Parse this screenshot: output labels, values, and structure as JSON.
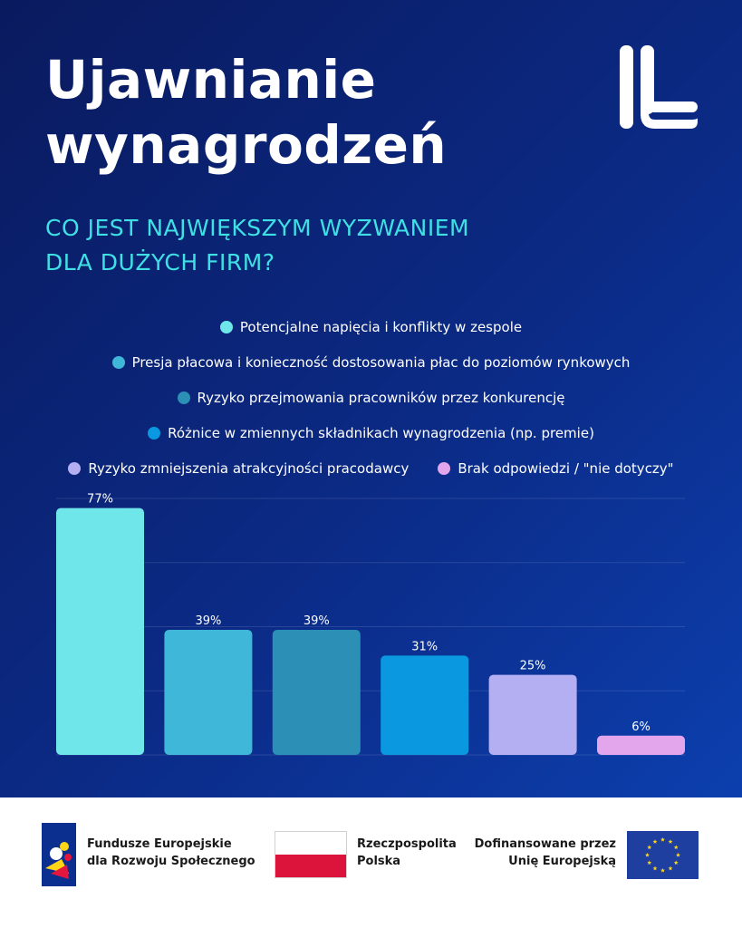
{
  "header": {
    "title_line1": "Ujawnianie",
    "title_line2": "wynagrodzeń",
    "subtitle_line1": "CO JEST NAJWIĘKSZYM WYZWANIEM",
    "subtitle_line2": "DLA DUŻYCH FIRM?"
  },
  "legend": [
    {
      "label": "Potencjalne napięcia i konflikty w zespole",
      "color": "#6fe6ea"
    },
    {
      "label": "Presja płacowa i konieczność dostosowania płac do poziomów rynkowych",
      "color": "#3fb7d8"
    },
    {
      "label": "Ryzyko przejmowania pracowników przez konkurencję",
      "color": "#2b8fb6"
    },
    {
      "label": "Różnice w zmiennych składnikach wynagrodzenia (np. premie)",
      "color": "#0a98e0"
    },
    {
      "label": "Ryzyko zmniejszenia atrakcyjności pracodawcy",
      "color": "#b4aef2"
    },
    {
      "label": "Brak odpowiedzi / \"nie dotyczy\"",
      "color": "#e3a6ec"
    }
  ],
  "chart_data": {
    "type": "bar",
    "categories": [
      "Potencjalne napięcia i konflikty w zespole",
      "Presja płacowa i konieczność dostosowania płac do poziomów rynkowych",
      "Ryzyko przejmowania pracowników przez konkurencję",
      "Różnice w zmiennych składnikach wynagrodzenia (np. premie)",
      "Ryzyko zmniejszenia atrakcyjności pracodawcy",
      "Brak odpowiedzi / \"nie dotyczy\""
    ],
    "values": [
      77,
      39,
      39,
      31,
      25,
      6
    ],
    "value_labels": [
      "77%",
      "39%",
      "39%",
      "31%",
      "25%",
      "6%"
    ],
    "colors": [
      "#6fe6ea",
      "#3fb7d8",
      "#2b8fb6",
      "#0a98e0",
      "#b4aef2",
      "#e3a6ec"
    ],
    "ylim": [
      0,
      80
    ],
    "grid": true
  },
  "footer": {
    "fe_line1": "Fundusze Europejskie",
    "fe_line2": "dla Rozwoju Społecznego",
    "pl_line1": "Rzeczpospolita",
    "pl_line2": "Polska",
    "eu_line1": "Dofinansowane przez",
    "eu_line2": "Unię Europejską"
  }
}
